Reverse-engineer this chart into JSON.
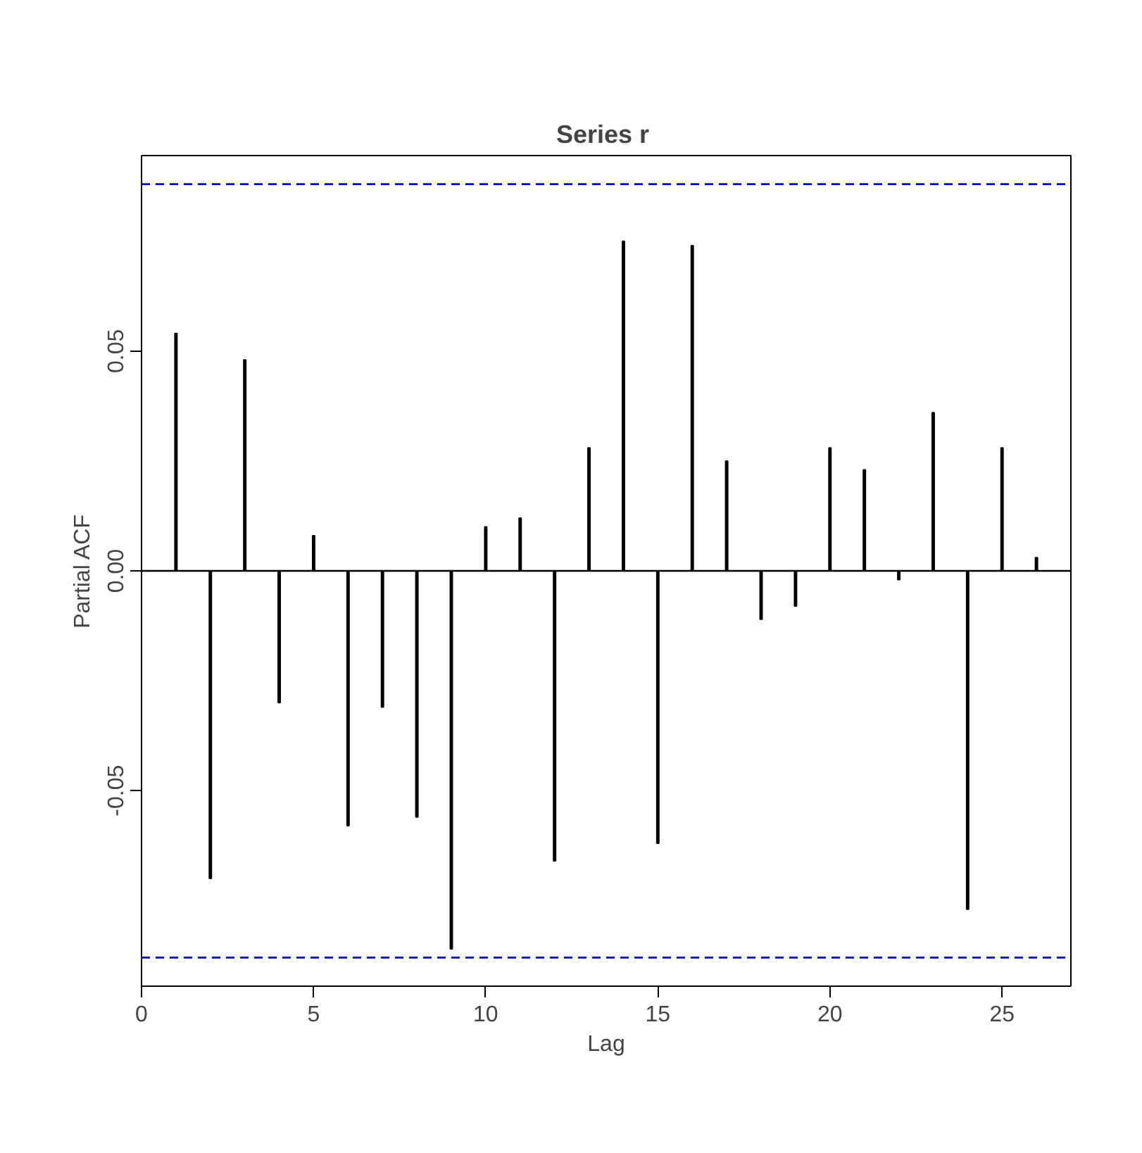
{
  "chart_data": {
    "type": "bar",
    "title": "Series  r",
    "xlabel": "Lag",
    "ylabel": "Partial ACF",
    "x": [
      1,
      2,
      3,
      4,
      5,
      6,
      7,
      8,
      9,
      10,
      11,
      12,
      13,
      14,
      15,
      16,
      17,
      18,
      19,
      20,
      21,
      22,
      23,
      24,
      25,
      26
    ],
    "values": [
      0.054,
      -0.07,
      0.048,
      -0.03,
      0.008,
      -0.058,
      -0.031,
      -0.056,
      -0.086,
      0.01,
      0.012,
      -0.066,
      0.028,
      0.075,
      -0.062,
      0.074,
      0.025,
      -0.011,
      -0.008,
      0.028,
      0.023,
      -0.002,
      0.036,
      -0.077,
      0.028,
      0.003
    ],
    "color": "#000000",
    "xlim": [
      0,
      27
    ],
    "ylim": [
      -0.0945,
      0.0945
    ],
    "xticks": [
      0,
      5,
      10,
      15,
      20,
      25
    ],
    "yticks": [
      {
        "value": -0.05,
        "label": "-0.05"
      },
      {
        "value": 0,
        "label": "0.00"
      },
      {
        "value": 0.05,
        "label": "0.05"
      }
    ],
    "ref_lines": [
      {
        "axis": "y",
        "value": 0.088,
        "color": "#0000cc",
        "line_style": "dashed"
      },
      {
        "axis": "y",
        "value": -0.088,
        "color": "#0000cc",
        "line_style": "dashed"
      },
      {
        "axis": "y",
        "value": 0,
        "color": "#000000",
        "line_style": "solid"
      }
    ],
    "grid": false
  }
}
